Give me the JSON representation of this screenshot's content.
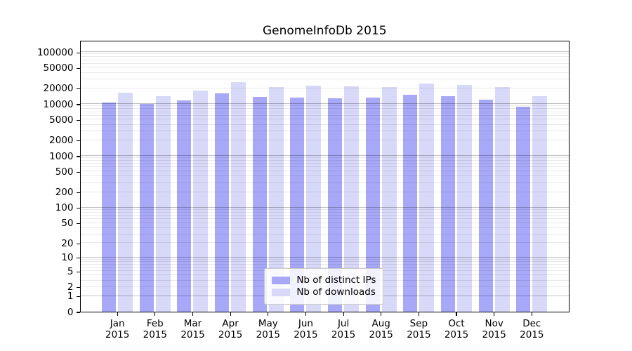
{
  "title": "GenomeInfoDb 2015",
  "chart_data": {
    "type": "bar",
    "title": "GenomeInfoDb 2015",
    "categories": [
      "Jan 2015",
      "Feb 2015",
      "Mar 2015",
      "Apr 2015",
      "May 2015",
      "Jun 2015",
      "Jul 2015",
      "Aug 2015",
      "Sep 2015",
      "Oct 2015",
      "Nov 2015",
      "Dec 2015"
    ],
    "series": [
      {
        "name": "Nb of distinct IPs",
        "color": "#a8a8f8",
        "values": [
          10800,
          9900,
          11600,
          15800,
          13500,
          13200,
          13000,
          13100,
          14900,
          14000,
          12000,
          8800
        ]
      },
      {
        "name": "Nb of downloads",
        "color": "#d8d8f8",
        "values": [
          16500,
          14000,
          18000,
          26500,
          21200,
          22300,
          21800,
          21000,
          25000,
          23500,
          21000,
          14300
        ]
      }
    ],
    "y_axis": {
      "scale": "log10(value+1)",
      "tick_values": [
        0,
        1,
        2,
        5,
        10,
        20,
        50,
        100,
        200,
        500,
        1000,
        2000,
        5000,
        10000,
        20000,
        50000,
        100000
      ],
      "top_value": 170000,
      "grid": true
    },
    "legend": {
      "position": "lower center",
      "entries": [
        "Nb of distinct IPs",
        "Nb of downloads"
      ]
    }
  }
}
